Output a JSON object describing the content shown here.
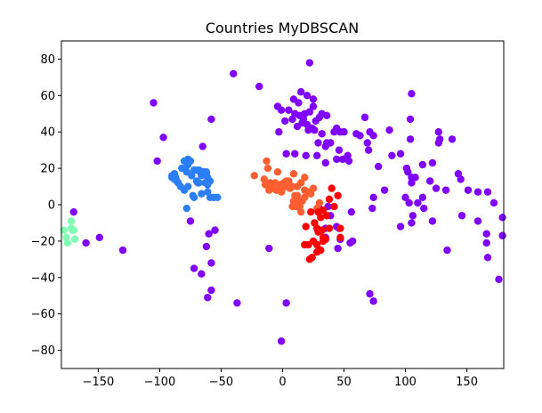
{
  "chart_data": {
    "type": "scatter",
    "title": "Countries MyDBSCAN",
    "xlim": [
      -180,
      180
    ],
    "ylim": [
      -90,
      90
    ],
    "x_ticks": [
      -150,
      -100,
      -50,
      0,
      50,
      100,
      150
    ],
    "y_ticks": [
      -80,
      -60,
      -40,
      -20,
      0,
      20,
      40,
      60,
      80
    ],
    "grid": false,
    "series": [
      {
        "color": "#7f00ff",
        "points": [
          [
            -40,
            72
          ],
          [
            22,
            78
          ],
          [
            -19,
            65
          ],
          [
            -105,
            56
          ],
          [
            -97,
            37
          ],
          [
            -102,
            24
          ],
          [
            -58,
            47
          ],
          [
            -65,
            32
          ],
          [
            105,
            61
          ],
          [
            104,
            47
          ],
          [
            104,
            36
          ],
          [
            89,
            27
          ],
          [
            78,
            21
          ],
          [
            83,
            8
          ],
          [
            67,
            48
          ],
          [
            69,
            34
          ],
          [
            70,
            30
          ],
          [
            71,
            40
          ],
          [
            60,
            39
          ],
          [
            47,
            40
          ],
          [
            42,
            40
          ],
          [
            54,
            24
          ],
          [
            53,
            27
          ],
          [
            44,
            25
          ],
          [
            49,
            25
          ],
          [
            46,
            30
          ],
          [
            35,
            32
          ],
          [
            36,
            34
          ],
          [
            39,
            34
          ],
          [
            32,
            39
          ],
          [
            28,
            27
          ],
          [
            29,
            34
          ],
          [
            35,
            23
          ],
          [
            19,
            27
          ],
          [
            10,
            28
          ],
          [
            3,
            28
          ],
          [
            -3,
            40
          ],
          [
            2,
            46
          ],
          [
            8,
            47
          ],
          [
            10,
            50
          ],
          [
            14,
            49
          ],
          [
            17,
            47
          ],
          [
            18,
            50
          ],
          [
            22,
            51
          ],
          [
            25,
            54
          ],
          [
            20,
            60
          ],
          [
            25,
            58
          ],
          [
            15,
            62
          ],
          [
            9,
            58
          ],
          [
            13,
            56
          ],
          [
            5,
            52
          ],
          [
            -1,
            52
          ],
          [
            -4,
            54
          ],
          [
            12,
            43
          ],
          [
            16,
            45
          ],
          [
            20,
            44
          ],
          [
            24,
            42
          ],
          [
            27,
            46
          ],
          [
            30,
            48
          ],
          [
            32,
            50
          ],
          [
            36,
            49
          ],
          [
            26,
            41
          ],
          [
            21,
            41
          ],
          [
            44,
            42
          ],
          [
            50,
            40
          ],
          [
            63,
            38
          ],
          [
            74,
            38
          ],
          [
            87,
            41
          ],
          [
            96,
            28
          ],
          [
            101,
            20
          ],
          [
            102,
            18
          ],
          [
            105,
            15
          ],
          [
            105,
            12
          ],
          [
            108,
            15
          ],
          [
            114,
            22
          ],
          [
            122,
            23
          ],
          [
            120,
            13
          ],
          [
            125,
            9
          ],
          [
            128,
            36
          ],
          [
            127,
            40
          ],
          [
            127,
            34
          ],
          [
            138,
            36
          ],
          [
            133,
            8
          ],
          [
            143,
            17
          ],
          [
            145,
            14
          ],
          [
            151,
            8
          ],
          [
            159,
            7
          ],
          [
            167,
            7
          ],
          [
            172,
            1
          ],
          [
            179,
            -7
          ],
          [
            179,
            -17
          ],
          [
            176,
            -41
          ],
          [
            166,
            -16
          ],
          [
            166,
            -21
          ],
          [
            167,
            -29
          ],
          [
            159,
            -9
          ],
          [
            146,
            -6
          ],
          [
            134,
            -25
          ],
          [
            122,
            -9
          ],
          [
            115,
            -2
          ],
          [
            106,
            -6
          ],
          [
            105,
            -10
          ],
          [
            100,
            4
          ],
          [
            103,
            1
          ],
          [
            114,
            4
          ],
          [
            110,
            1
          ],
          [
            96,
            -12
          ],
          [
            73,
            -2
          ],
          [
            74,
            4
          ],
          [
            71,
            -49
          ],
          [
            74,
            -53
          ],
          [
            57,
            -20
          ],
          [
            55,
            -21
          ],
          [
            47,
            -19
          ],
          [
            46,
            -13
          ],
          [
            56,
            -4
          ],
          [
            44,
            -12
          ],
          [
            39,
            -6
          ],
          [
            37,
            -1
          ],
          [
            30,
            -2
          ],
          [
            35,
            -13
          ],
          [
            45,
            -24
          ],
          [
            35,
            -18
          ],
          [
            -37,
            -54
          ],
          [
            3,
            -54
          ],
          [
            -1,
            -75
          ],
          [
            -11,
            -24
          ],
          [
            -72,
            -35
          ],
          [
            -66,
            -38
          ],
          [
            -58,
            -47
          ],
          [
            -61,
            -51
          ],
          [
            -58,
            -32
          ],
          [
            -62,
            -23
          ],
          [
            -55,
            -14
          ],
          [
            -60,
            -16
          ],
          [
            -75,
            -9
          ],
          [
            -130,
            -25
          ],
          [
            -149,
            -18
          ],
          [
            -160,
            -21
          ],
          [
            -170,
            -4
          ]
        ]
      },
      {
        "color": "#2c7ef7",
        "points": [
          [
            -85,
            12
          ],
          [
            -88,
            14
          ],
          [
            -86,
            13
          ],
          [
            -87,
            15
          ],
          [
            -90,
            16
          ],
          [
            -88,
            17
          ],
          [
            -83,
            10
          ],
          [
            -80,
            8
          ],
          [
            -77,
            10
          ],
          [
            -79,
            20
          ],
          [
            -77,
            22
          ],
          [
            -75,
            24
          ],
          [
            -72,
            19
          ],
          [
            -70,
            19
          ],
          [
            -66,
            18
          ],
          [
            -65,
            18
          ],
          [
            -62,
            17
          ],
          [
            -61,
            15
          ],
          [
            -61,
            13
          ],
          [
            -60,
            13
          ],
          [
            -59,
            13
          ],
          [
            -61,
            11
          ],
          [
            -63,
            12
          ],
          [
            -64,
            18
          ],
          [
            -66,
            16
          ],
          [
            -68,
            12
          ],
          [
            -69,
            12
          ],
          [
            -70,
            13
          ],
          [
            -61,
            7
          ],
          [
            -56,
            4
          ],
          [
            -53,
            4
          ],
          [
            -59,
            4
          ],
          [
            -66,
            6
          ],
          [
            -72,
            4
          ],
          [
            -78,
            -2
          ],
          [
            -73,
            5
          ],
          [
            -74,
            16
          ],
          [
            -78,
            18
          ],
          [
            -80,
            24
          ],
          [
            -82,
            20
          ],
          [
            -77,
            25
          ],
          [
            -90,
            15
          ],
          [
            -62,
            18
          ],
          [
            -64,
            17
          ],
          [
            -67,
            18
          ],
          [
            -68,
            19
          ],
          [
            -63,
            17
          ]
        ]
      },
      {
        "color": "#80ffb4",
        "points": [
          [
            -172,
            -13
          ],
          [
            -175,
            -21
          ],
          [
            -171,
            -14
          ],
          [
            -176,
            -18
          ],
          [
            -169,
            -19
          ],
          [
            -172,
            -9
          ],
          [
            -170,
            -14
          ],
          [
            -178,
            -14
          ]
        ]
      },
      {
        "color": "#ff5f30",
        "points": [
          [
            -23,
            16
          ],
          [
            -13,
            24
          ],
          [
            -12,
            20
          ],
          [
            -15,
            14
          ],
          [
            -11,
            8
          ],
          [
            -14,
            11
          ],
          [
            -10,
            12
          ],
          [
            -9,
            9
          ],
          [
            -6,
            12
          ],
          [
            -3,
            8
          ],
          [
            -5,
            8
          ],
          [
            -1,
            10
          ],
          [
            0,
            9
          ],
          [
            2,
            10
          ],
          [
            6,
            9
          ],
          [
            8,
            10
          ],
          [
            12,
            10
          ],
          [
            15,
            12
          ],
          [
            18,
            15
          ],
          [
            9,
            17
          ],
          [
            1,
            11
          ],
          [
            -1,
            7
          ],
          [
            -4,
            18
          ],
          [
            -8,
            9
          ],
          [
            -2,
            11
          ],
          [
            1,
            12
          ],
          [
            21,
            7
          ],
          [
            9,
            2
          ],
          [
            11,
            -1
          ],
          [
            12,
            0
          ],
          [
            14,
            -1
          ],
          [
            18,
            4
          ],
          [
            23,
            6
          ],
          [
            11,
            2
          ],
          [
            10,
            0
          ],
          [
            8,
            -1
          ],
          [
            13,
            2
          ],
          [
            16,
            2
          ],
          [
            10,
            5
          ],
          [
            12,
            5
          ],
          [
            3,
            13
          ],
          [
            5,
            13
          ],
          [
            18,
            8
          ],
          [
            25,
            9
          ],
          [
            12,
            -1
          ],
          [
            15,
            -4
          ],
          [
            10,
            1
          ],
          [
            28,
            -2
          ],
          [
            30,
            1
          ]
        ]
      },
      {
        "color": "#ff0000",
        "points": [
          [
            40,
            9
          ],
          [
            38,
            3
          ],
          [
            45,
            5
          ],
          [
            23,
            -4
          ],
          [
            29,
            -4
          ],
          [
            26,
            -10
          ],
          [
            31,
            -7
          ],
          [
            33,
            -3
          ],
          [
            36,
            -6
          ],
          [
            38,
            -13
          ],
          [
            42,
            -1
          ],
          [
            28,
            -13
          ],
          [
            29,
            -15
          ],
          [
            32,
            -14
          ],
          [
            33,
            -20
          ],
          [
            35,
            -19
          ],
          [
            25,
            -20
          ],
          [
            28,
            -22
          ],
          [
            18,
            -22
          ],
          [
            21,
            -22
          ],
          [
            24,
            -29
          ],
          [
            28,
            -26
          ],
          [
            31,
            -25
          ],
          [
            22,
            -30
          ],
          [
            47,
            -13
          ],
          [
            47,
            -18
          ],
          [
            33,
            -18
          ],
          [
            19,
            -12
          ]
        ]
      }
    ]
  }
}
